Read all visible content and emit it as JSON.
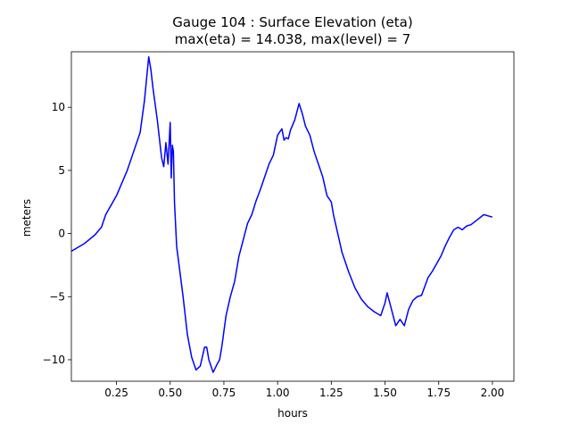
{
  "chart_data": {
    "type": "line",
    "title": "Gauge 104 : Surface Elevation (eta)",
    "subtitle": "max(eta) =  14.038,    max(level) = 7",
    "xlabel": "hours",
    "ylabel": "meters",
    "xlim": [
      0.04,
      2.1
    ],
    "ylim": [
      -11.7,
      14.4
    ],
    "xticks": [
      0.25,
      0.5,
      0.75,
      1.0,
      1.25,
      1.5,
      1.75,
      2.0
    ],
    "xtick_labels": [
      "0.25",
      "0.50",
      "0.75",
      "1.00",
      "1.25",
      "1.50",
      "1.75",
      "2.00"
    ],
    "yticks": [
      -10,
      -5,
      0,
      5,
      10
    ],
    "ytick_labels": [
      "−10",
      "−5",
      "0",
      "5",
      "10"
    ],
    "grid": false,
    "series": [
      {
        "color": "#0000ff",
        "x": [
          0.04,
          0.1,
          0.15,
          0.18,
          0.2,
          0.25,
          0.3,
          0.33,
          0.36,
          0.38,
          0.4,
          0.41,
          0.42,
          0.44,
          0.46,
          0.47,
          0.48,
          0.49,
          0.5,
          0.505,
          0.51,
          0.515,
          0.52,
          0.53,
          0.56,
          0.58,
          0.6,
          0.62,
          0.64,
          0.66,
          0.67,
          0.68,
          0.7,
          0.72,
          0.73,
          0.74,
          0.76,
          0.78,
          0.8,
          0.82,
          0.84,
          0.86,
          0.88,
          0.9,
          0.92,
          0.94,
          0.96,
          0.98,
          1.0,
          1.02,
          1.03,
          1.04,
          1.05,
          1.06,
          1.08,
          1.1,
          1.115,
          1.13,
          1.15,
          1.17,
          1.19,
          1.21,
          1.23,
          1.25,
          1.26,
          1.28,
          1.3,
          1.33,
          1.36,
          1.39,
          1.42,
          1.45,
          1.48,
          1.5,
          1.51,
          1.53,
          1.55,
          1.57,
          1.59,
          1.61,
          1.63,
          1.65,
          1.67,
          1.7,
          1.72,
          1.74,
          1.76,
          1.78,
          1.8,
          1.82,
          1.84,
          1.86,
          1.88,
          1.9,
          1.93,
          1.96,
          1.98,
          2.0
        ],
        "y": [
          -1.4,
          -0.8,
          -0.1,
          0.5,
          1.5,
          3.0,
          5.0,
          6.5,
          8.0,
          10.5,
          14.0,
          13.0,
          11.5,
          9.0,
          6.0,
          5.3,
          7.2,
          5.5,
          8.8,
          4.4,
          7.0,
          6.5,
          2.5,
          -1.0,
          -5.0,
          -8.0,
          -9.8,
          -10.8,
          -10.5,
          -9.0,
          -9.0,
          -10.0,
          -11.0,
          -10.3,
          -10.0,
          -9.0,
          -6.5,
          -5.0,
          -3.8,
          -1.8,
          -0.5,
          0.8,
          1.5,
          2.6,
          3.5,
          4.5,
          5.5,
          6.2,
          7.8,
          8.3,
          7.4,
          7.6,
          7.5,
          8.2,
          9.0,
          10.3,
          9.5,
          8.5,
          7.8,
          6.5,
          5.5,
          4.5,
          3.0,
          2.5,
          1.5,
          0.0,
          -1.5,
          -3.0,
          -4.3,
          -5.2,
          -5.8,
          -6.2,
          -6.5,
          -5.5,
          -4.7,
          -6.0,
          -7.3,
          -6.8,
          -7.3,
          -6.0,
          -5.3,
          -5.0,
          -4.9,
          -3.5,
          -3.0,
          -2.4,
          -1.8,
          -1.0,
          -0.3,
          0.3,
          0.5,
          0.3,
          0.6,
          0.7,
          1.1,
          1.5,
          1.4,
          1.3
        ]
      }
    ]
  }
}
